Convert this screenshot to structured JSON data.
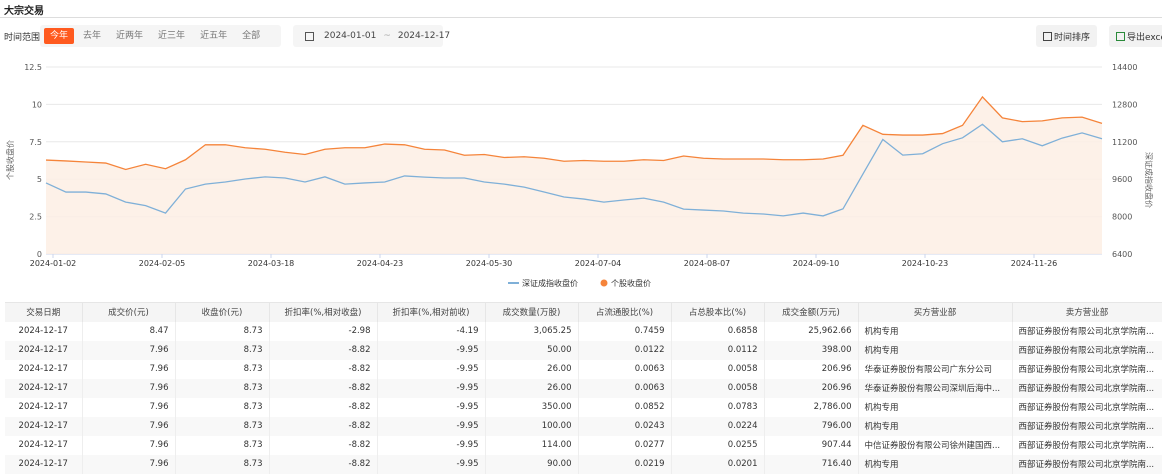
{
  "header": {
    "title": "大宗交易"
  },
  "filter": {
    "label": "时间范围",
    "tabs": [
      "今年",
      "去年",
      "近两年",
      "近三年",
      "近五年",
      "全部"
    ],
    "active": 0,
    "start_date": "2024-01-01",
    "separator": "~",
    "end_date": "2024-12-17"
  },
  "toolbar": {
    "sort_label": "时间排序",
    "export_label": "导出excel"
  },
  "colors": {
    "accent": "#ff5a1f",
    "stock": "#f5843a",
    "index": "#7fb0d8",
    "fill": "#fdefe4"
  },
  "chart_data": {
    "type": "line",
    "ylabel_left": "个股收盘价",
    "ylabel_right": "深证成指收盘价",
    "ylim_left": [
      0,
      12.5
    ],
    "yticks_left": [
      "0",
      "2.5",
      "5",
      "7.5",
      "10",
      "12.5"
    ],
    "ylim_right": [
      6400,
      14400
    ],
    "yticks_right": [
      "6400",
      "8000",
      "9600",
      "11200",
      "12800",
      "14400"
    ],
    "x_range": [
      "2024-01-02",
      "2024-12-17"
    ],
    "xticks": [
      "2024-01-02",
      "2024-02-05",
      "2024-03-18",
      "2024-04-23",
      "2024-05-30",
      "2024-07-04",
      "2024-08-07",
      "2024-09-10",
      "2024-10-23",
      "2024-11-26"
    ],
    "grid": true,
    "legend": "bottom",
    "series": [
      {
        "name": "深证成指收盘价",
        "axis": "right",
        "values": [
          9440,
          9050,
          9050,
          8970,
          8620,
          8470,
          8150,
          9180,
          9390,
          9480,
          9610,
          9700,
          9650,
          9480,
          9700,
          9390,
          9440,
          9480,
          9740,
          9690,
          9650,
          9650,
          9480,
          9390,
          9260,
          9050,
          8840,
          8750,
          8620,
          8710,
          8790,
          8620,
          8320,
          8280,
          8240,
          8150,
          8110,
          8030,
          8150,
          8030,
          8330,
          9820,
          11300,
          10630,
          10690,
          11120,
          11370,
          11950,
          11200,
          11330,
          11030,
          11360,
          11580,
          11330
        ]
      },
      {
        "name": "个股收盘价",
        "axis": "left",
        "values": [
          6.28,
          6.22,
          6.15,
          6.08,
          5.65,
          6.0,
          5.7,
          6.3,
          7.3,
          7.3,
          7.1,
          7.0,
          6.8,
          6.65,
          7.0,
          7.1,
          7.1,
          7.35,
          7.3,
          7.0,
          6.95,
          6.6,
          6.65,
          6.45,
          6.5,
          6.4,
          6.2,
          6.25,
          6.2,
          6.2,
          6.3,
          6.25,
          6.55,
          6.4,
          6.35,
          6.35,
          6.35,
          6.3,
          6.3,
          6.35,
          6.6,
          8.6,
          8.0,
          7.95,
          7.95,
          8.05,
          8.6,
          10.5,
          9.1,
          8.85,
          8.9,
          9.1,
          9.15,
          8.73
        ]
      }
    ]
  },
  "table": {
    "columns": [
      "交易日期",
      "成交价(元)",
      "收盘价(元)",
      "折扣率(%,相对收盘)",
      "折扣率(%,相对前收)",
      "成交数量(万股)",
      "占流通股比(%)",
      "占总股本比(%)",
      "成交金额(万元)",
      "买方营业部",
      "卖方营业部"
    ],
    "rows": [
      [
        "2024-12-17",
        "8.47",
        "8.73",
        "-2.98",
        "-4.19",
        "3,065.25",
        "0.7459",
        "0.6858",
        "25,962.66",
        "机构专用",
        "西部证券股份有限公司北京学院南..."
      ],
      [
        "2024-12-17",
        "7.96",
        "8.73",
        "-8.82",
        "-9.95",
        "50.00",
        "0.0122",
        "0.0112",
        "398.00",
        "机构专用",
        "西部证券股份有限公司北京学院南..."
      ],
      [
        "2024-12-17",
        "7.96",
        "8.73",
        "-8.82",
        "-9.95",
        "26.00",
        "0.0063",
        "0.0058",
        "206.96",
        "华泰证券股份有限公司广东分公司",
        "西部证券股份有限公司北京学院南..."
      ],
      [
        "2024-12-17",
        "7.96",
        "8.73",
        "-8.82",
        "-9.95",
        "26.00",
        "0.0063",
        "0.0058",
        "206.96",
        "华泰证券股份有限公司深圳后海中...",
        "西部证券股份有限公司北京学院南..."
      ],
      [
        "2024-12-17",
        "7.96",
        "8.73",
        "-8.82",
        "-9.95",
        "350.00",
        "0.0852",
        "0.0783",
        "2,786.00",
        "机构专用",
        "西部证券股份有限公司北京学院南..."
      ],
      [
        "2024-12-17",
        "7.96",
        "8.73",
        "-8.82",
        "-9.95",
        "100.00",
        "0.0243",
        "0.0224",
        "796.00",
        "机构专用",
        "西部证券股份有限公司北京学院南..."
      ],
      [
        "2024-12-17",
        "7.96",
        "8.73",
        "-8.82",
        "-9.95",
        "114.00",
        "0.0277",
        "0.0255",
        "907.44",
        "中信证券股份有限公司徐州建国西...",
        "西部证券股份有限公司北京学院南..."
      ],
      [
        "2024-12-17",
        "7.96",
        "8.73",
        "-8.82",
        "-9.95",
        "90.00",
        "0.0219",
        "0.0201",
        "716.40",
        "机构专用",
        "西部证券股份有限公司北京学院南..."
      ]
    ]
  }
}
